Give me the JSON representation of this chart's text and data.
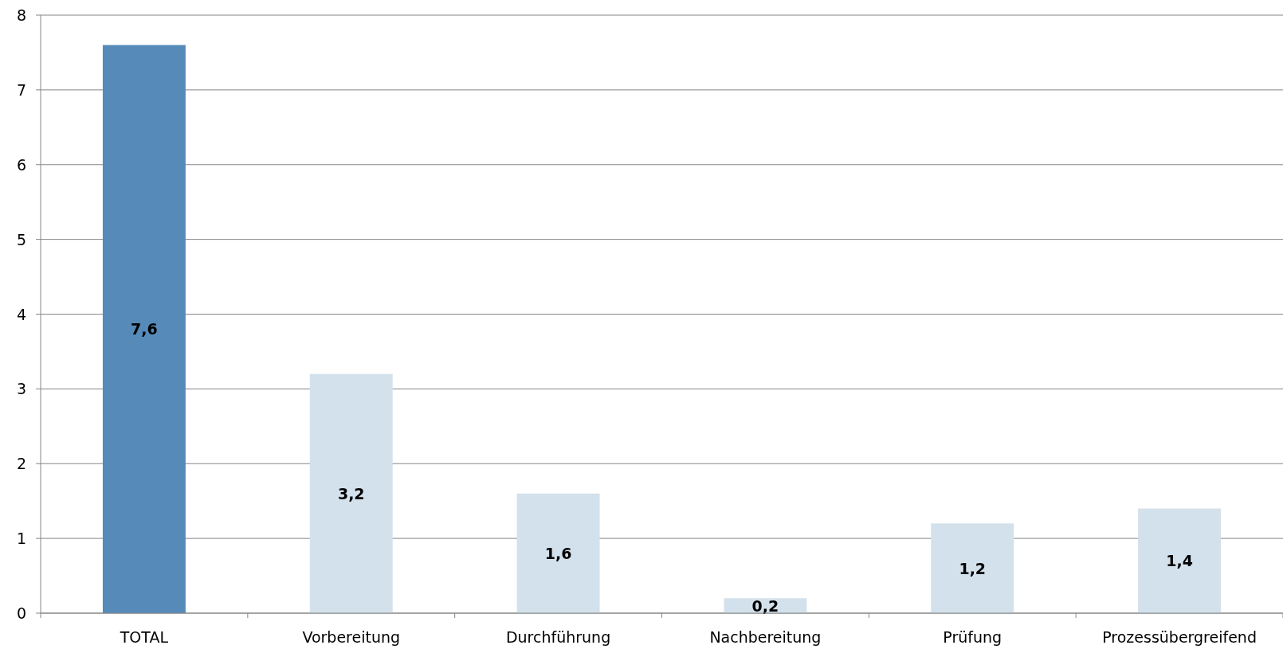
{
  "chart_data": {
    "type": "bar",
    "categories": [
      "TOTAL",
      "Vorbereitung",
      "Durchführung",
      "Nachbereitung",
      "Prüfung",
      "Prozessübergreifend"
    ],
    "values": [
      7.6,
      3.2,
      1.6,
      0.2,
      1.2,
      1.4
    ],
    "colors": [
      "#558ab9",
      "#d3e1ec",
      "#d3e1ec",
      "#d3e1ec",
      "#d3e1ec",
      "#d3e1ec"
    ],
    "value_labels": [
      "7,6",
      "3,2",
      "1,6",
      "0,2",
      "1,2",
      "1,4"
    ],
    "ylim": [
      0,
      8
    ],
    "yticks": [
      0,
      1,
      2,
      3,
      4,
      5,
      6,
      7,
      8
    ],
    "grid": "y"
  }
}
